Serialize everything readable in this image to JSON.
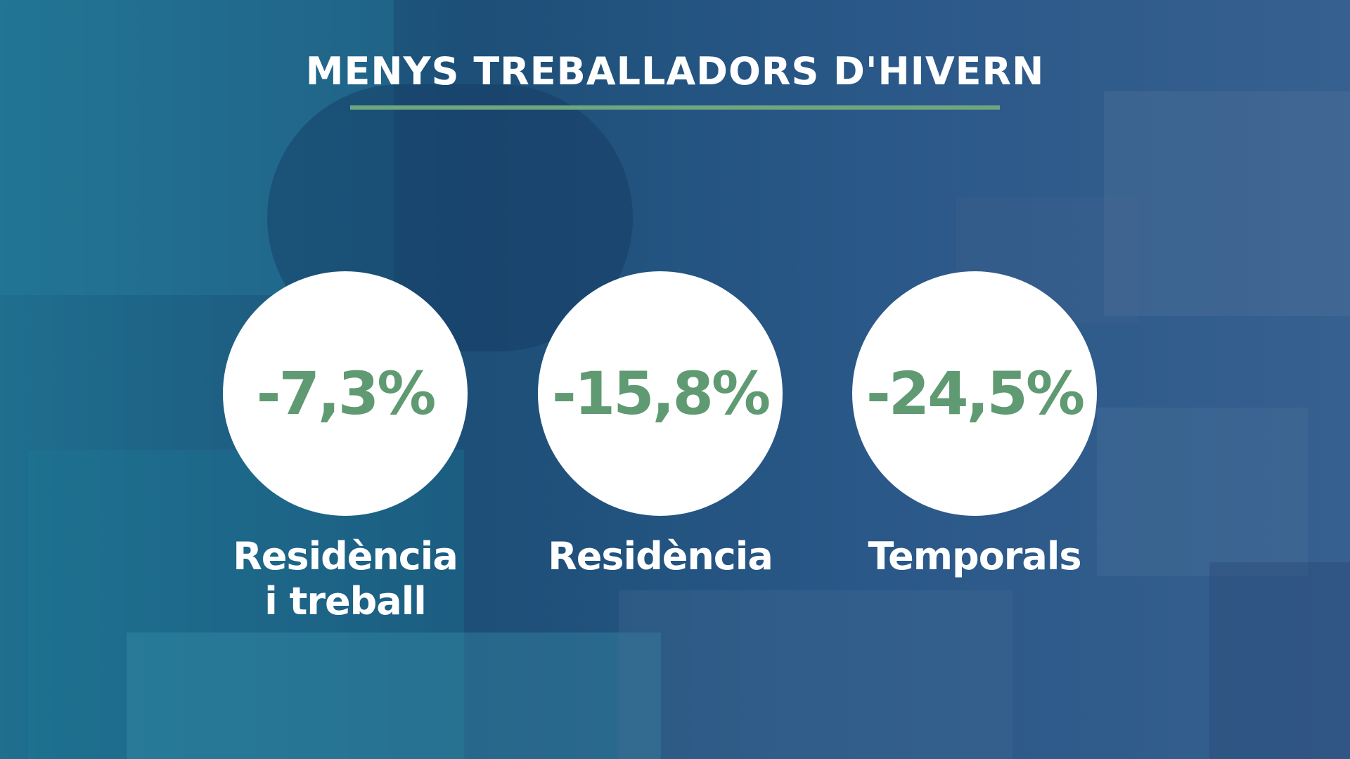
{
  "title": "MENYS TREBALLADORS D'HIVERN",
  "colors": {
    "accent": "#6fa67f",
    "value_text": "#5f9a72",
    "circle": "#ffffff",
    "text": "#ffffff"
  },
  "stats": [
    {
      "value": "-7,3%",
      "label_line1": "Residència",
      "label_line2": "i treball"
    },
    {
      "value": "-15,8%",
      "label_line1": "Residència",
      "label_line2": ""
    },
    {
      "value": "-24,5%",
      "label_line1": "Temporals",
      "label_line2": ""
    }
  ]
}
